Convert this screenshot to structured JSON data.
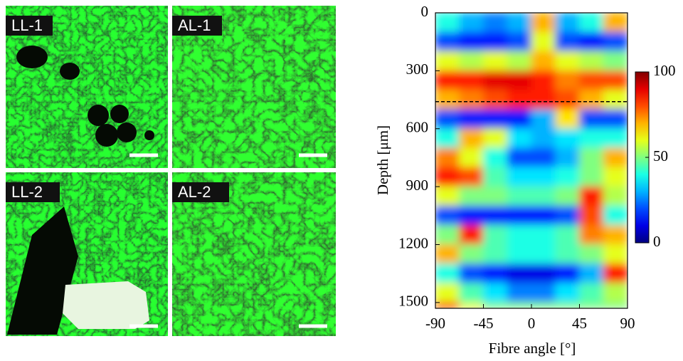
{
  "panels": [
    {
      "label": "LL-1"
    },
    {
      "label": "AL-1"
    },
    {
      "label": "LL-2"
    },
    {
      "label": "AL-2"
    }
  ],
  "chart_data": {
    "type": "heatmap",
    "xlabel": "Fibre angle [°]",
    "ylabel": "Depth [μm]",
    "xbins": [
      -90,
      -67.5,
      -45,
      -22.5,
      0,
      22.5,
      45,
      67.5,
      90
    ],
    "ybins": [
      0,
      100,
      200,
      300,
      400,
      500,
      600,
      700,
      800,
      900,
      1000,
      1100,
      1200,
      1300,
      1400,
      1500,
      1530
    ],
    "values": [
      [
        40,
        30,
        25,
        30,
        70,
        30,
        40,
        70
      ],
      [
        20,
        15,
        15,
        20,
        60,
        20,
        15,
        20
      ],
      [
        60,
        55,
        60,
        55,
        70,
        60,
        55,
        50
      ],
      [
        85,
        85,
        90,
        90,
        85,
        75,
        80,
        80
      ],
      [
        70,
        75,
        80,
        85,
        85,
        80,
        70,
        60
      ],
      [
        20,
        15,
        15,
        15,
        30,
        65,
        20,
        20
      ],
      [
        40,
        70,
        60,
        35,
        30,
        35,
        40,
        40
      ],
      [
        75,
        60,
        40,
        20,
        20,
        30,
        50,
        70
      ],
      [
        85,
        80,
        45,
        35,
        35,
        40,
        50,
        60
      ],
      [
        60,
        50,
        50,
        45,
        45,
        50,
        85,
        55
      ],
      [
        20,
        15,
        15,
        15,
        15,
        20,
        80,
        40
      ],
      [
        50,
        85,
        45,
        40,
        40,
        45,
        75,
        70
      ],
      [
        70,
        50,
        45,
        40,
        40,
        45,
        50,
        60
      ],
      [
        40,
        20,
        15,
        10,
        10,
        15,
        30,
        85
      ],
      [
        60,
        45,
        35,
        25,
        25,
        35,
        45,
        55
      ],
      [
        85,
        60,
        50,
        50,
        50,
        50,
        50,
        50
      ]
    ],
    "xlim": [
      -90,
      90
    ],
    "ylim": [
      0,
      1530
    ],
    "xticks": [
      -90,
      -45,
      0,
      45,
      90
    ],
    "yticks": [
      0,
      300,
      600,
      900,
      1200,
      1500
    ],
    "divider_depth": 460,
    "clim": [
      0,
      100
    ],
    "cticks": [
      0,
      50,
      100
    ],
    "colormap": "jet"
  }
}
